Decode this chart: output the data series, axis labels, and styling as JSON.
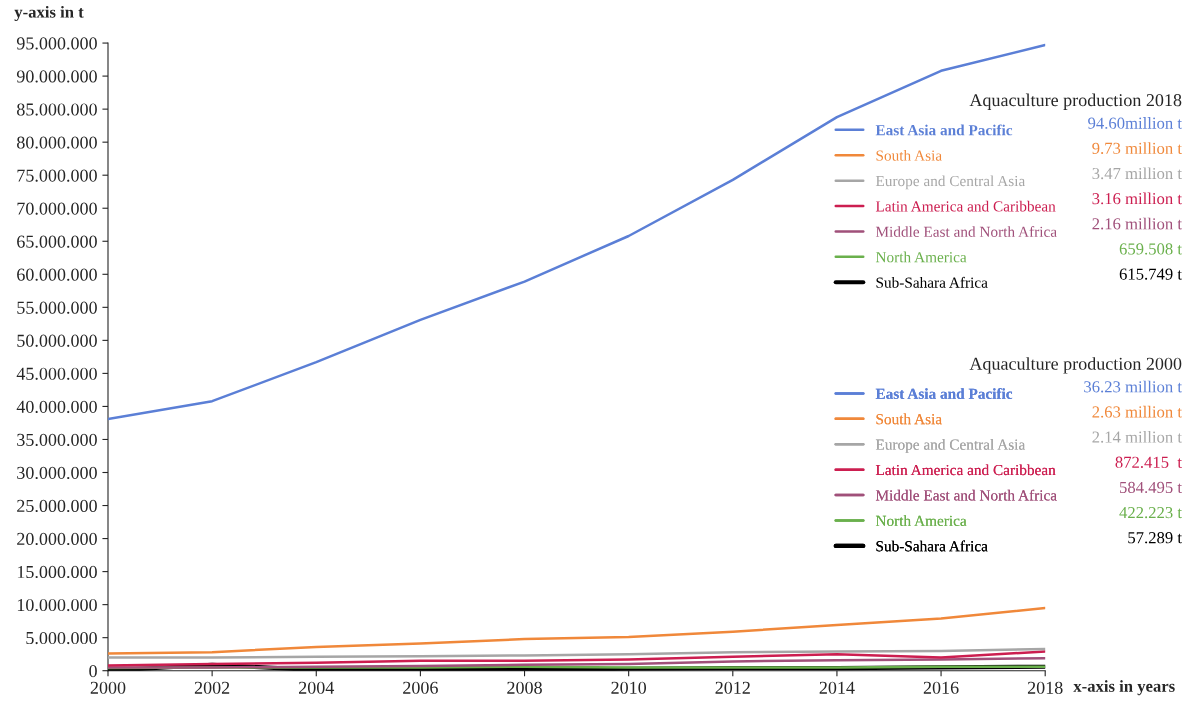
{
  "chart_data": {
    "type": "line",
    "xlabel": "x-axis in years",
    "ylabel": "y-axis in t",
    "x": [
      2000,
      2002,
      2004,
      2006,
      2008,
      2010,
      2012,
      2014,
      2016,
      2018
    ],
    "series": [
      {
        "name": "East Asia and Pacific",
        "color": "#5b7fd6",
        "values": [
          38100000,
          40800000,
          46700000,
          53100000,
          58900000,
          65800000,
          74300000,
          83800000,
          90800000,
          94700000
        ]
      },
      {
        "name": "South Asia",
        "color": "#f0883a",
        "values": [
          2600000,
          2800000,
          3600000,
          4100000,
          4800000,
          5100000,
          5900000,
          6900000,
          7900000,
          9500000
        ]
      },
      {
        "name": "Europe and Central Asia",
        "color": "#a6a6a6",
        "values": [
          2000000,
          2000000,
          2100000,
          2200000,
          2300000,
          2500000,
          2800000,
          2900000,
          3000000,
          3300000
        ]
      },
      {
        "name": "Latin America and Caribbean",
        "color": "#cc1e50",
        "values": [
          800000,
          1000000,
          1200000,
          1500000,
          1500000,
          1700000,
          2100000,
          2500000,
          2000000,
          2900000
        ]
      },
      {
        "name": "Middle East and North Africa",
        "color": "#a0507a",
        "values": [
          500000,
          500000,
          600000,
          700000,
          900000,
          1000000,
          1400000,
          1600000,
          1700000,
          1900000
        ]
      },
      {
        "name": "North America",
        "color": "#6ab04c",
        "values": [
          400000,
          500000,
          500000,
          500000,
          600000,
          500000,
          500000,
          500000,
          600000,
          600000
        ]
      },
      {
        "name": "Sub-Sahara Africa",
        "color": "#000000",
        "values": [
          0,
          900000,
          100000,
          100000,
          100000,
          300000,
          400000,
          400000,
          500000,
          600000
        ]
      }
    ],
    "xlim": [
      2000,
      2018
    ],
    "xticks": [
      2000,
      2002,
      2004,
      2006,
      2008,
      2010,
      2012,
      2014,
      2016,
      2018
    ],
    "ylim": [
      0,
      95000000
    ],
    "yticks": [
      {
        "value": 0,
        "label": "0"
      },
      {
        "value": 5000000,
        "label": "5.000.000"
      },
      {
        "value": 10000000,
        "label": "10.000.000"
      },
      {
        "value": 15000000,
        "label": "15.000.000"
      },
      {
        "value": 20000000,
        "label": "20.000.000"
      },
      {
        "value": 25000000,
        "label": "25.000.000"
      },
      {
        "value": 30000000,
        "label": "30.000.000"
      },
      {
        "value": 35000000,
        "label": "35.000.000"
      },
      {
        "value": 40000000,
        "label": "40.000.000"
      },
      {
        "value": 45000000,
        "label": "45.000.000"
      },
      {
        "value": 50000000,
        "label": "50.000.000"
      },
      {
        "value": 55000000,
        "label": "55.000.000"
      },
      {
        "value": 60000000,
        "label": "60.000.000"
      },
      {
        "value": 65000000,
        "label": "65.000.000"
      },
      {
        "value": 70000000,
        "label": "70.000.000"
      },
      {
        "value": 75000000,
        "label": "75.000.000"
      },
      {
        "value": 80000000,
        "label": "80.000.000"
      },
      {
        "value": 85000000,
        "label": "85.000.000"
      },
      {
        "value": 90000000,
        "label": "90.000.000"
      },
      {
        "value": 95000000,
        "label": "95.000.000"
      }
    ],
    "grid": false,
    "legend": "right",
    "marker": "none",
    "line_style": "solid",
    "legend_title": "Aquaculture production 2018",
    "annotations": [
      "94.60million t",
      "9.73 million t",
      "3.47 million t",
      "3.16 million t",
      "2.16 million t",
      "659.508 t",
      "615.749 t",
      "Aquaculture production 2000",
      "36.23 million t",
      "2.63 million t",
      "2.14 million t",
      "872.415  t",
      "584.495 t",
      "422.223 t",
      "57.289 t"
    ]
  }
}
